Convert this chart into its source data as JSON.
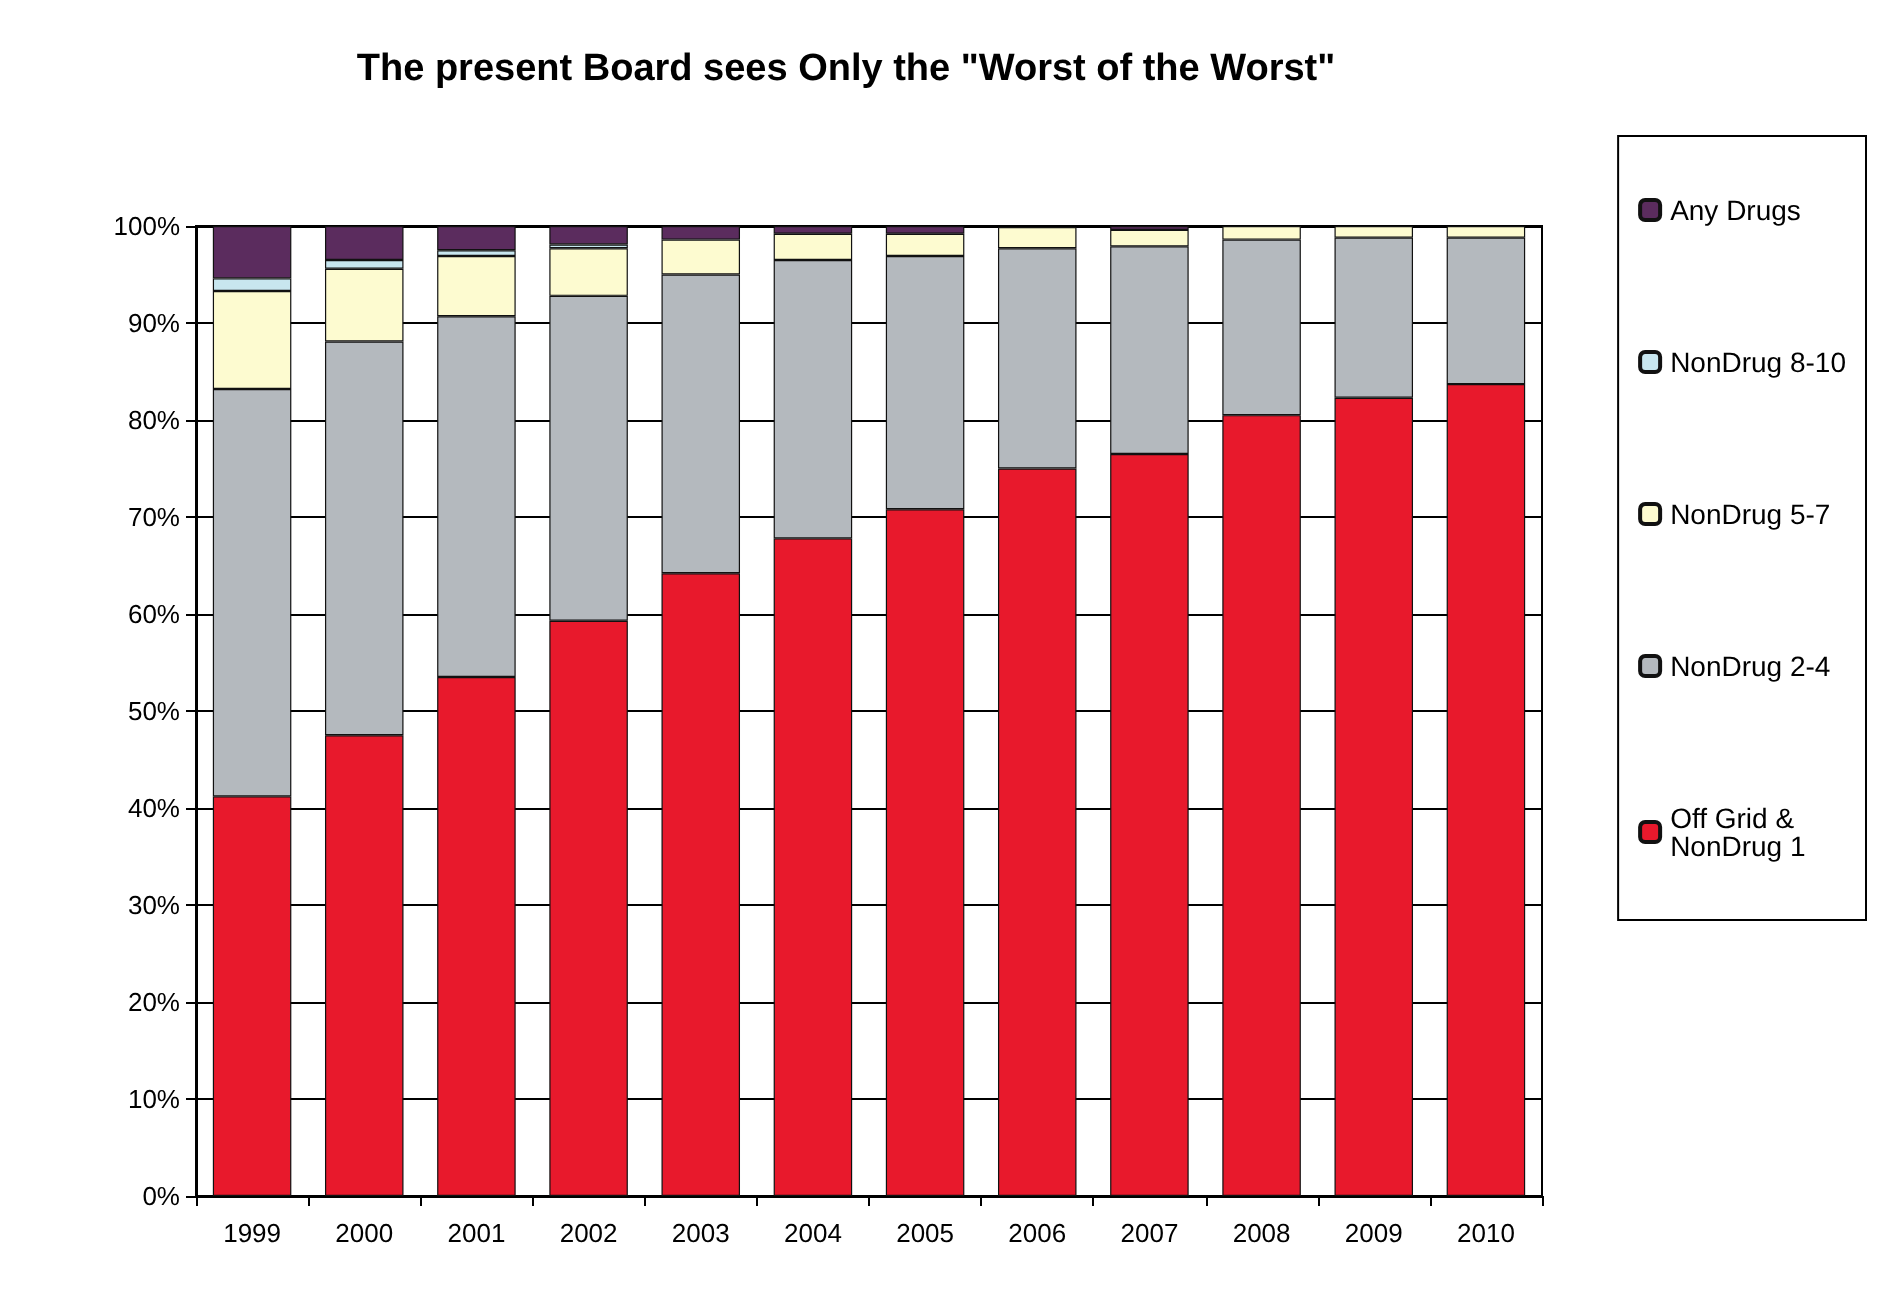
{
  "chart_data": {
    "type": "bar",
    "stacked": true,
    "title": "The present Board sees Only the \"Worst of the Worst\"",
    "categories": [
      "1999",
      "2000",
      "2001",
      "2002",
      "2003",
      "2004",
      "2005",
      "2006",
      "2007",
      "2008",
      "2009",
      "2010"
    ],
    "ylim": [
      0,
      100
    ],
    "yticks": [
      {
        "value": 0,
        "label": "0%"
      },
      {
        "value": 10,
        "label": "10%"
      },
      {
        "value": 20,
        "label": "20%"
      },
      {
        "value": 30,
        "label": "30%"
      },
      {
        "value": 40,
        "label": "40%"
      },
      {
        "value": 50,
        "label": "50%"
      },
      {
        "value": 60,
        "label": "60%"
      },
      {
        "value": 70,
        "label": "70%"
      },
      {
        "value": 80,
        "label": "80%"
      },
      {
        "value": 90,
        "label": "90%"
      },
      {
        "value": 100,
        "label": "100%"
      }
    ],
    "grid": "y",
    "legend": "right",
    "series": [
      {
        "name": "Off Grid & NonDrug 1",
        "color": "#e8192c",
        "values": [
          41.2,
          47.5,
          53.5,
          59.3,
          64.2,
          67.8,
          70.8,
          75.0,
          76.5,
          80.5,
          82.3,
          83.7
        ]
      },
      {
        "name": "NonDrug 2-4",
        "color": "#b4b9be",
        "values": [
          42,
          40.6,
          37.2,
          33.5,
          30.8,
          28.7,
          26.1,
          22.7,
          21.4,
          18.1,
          16.5,
          15.1
        ]
      },
      {
        "name": "NonDrug 5-7",
        "color": "#fdfbd0",
        "values": [
          10.1,
          7.5,
          6.2,
          4.9,
          3.6,
          2.7,
          2.3,
          2.2,
          1.7,
          1.4,
          1.2,
          1.2
        ]
      },
      {
        "name": "NonDrug 8-10",
        "color": "#c8e6ef",
        "values": [
          1.3,
          0.9,
          0.6,
          0.4,
          null,
          null,
          null,
          null,
          null,
          null,
          null,
          null
        ]
      },
      {
        "name": "Any Drugs",
        "color": "#5b2c5e",
        "values": [
          5.4,
          3.5,
          2.5,
          1.9,
          1.4,
          0.8,
          0.8,
          null,
          0.4,
          null,
          null,
          null
        ]
      }
    ]
  }
}
